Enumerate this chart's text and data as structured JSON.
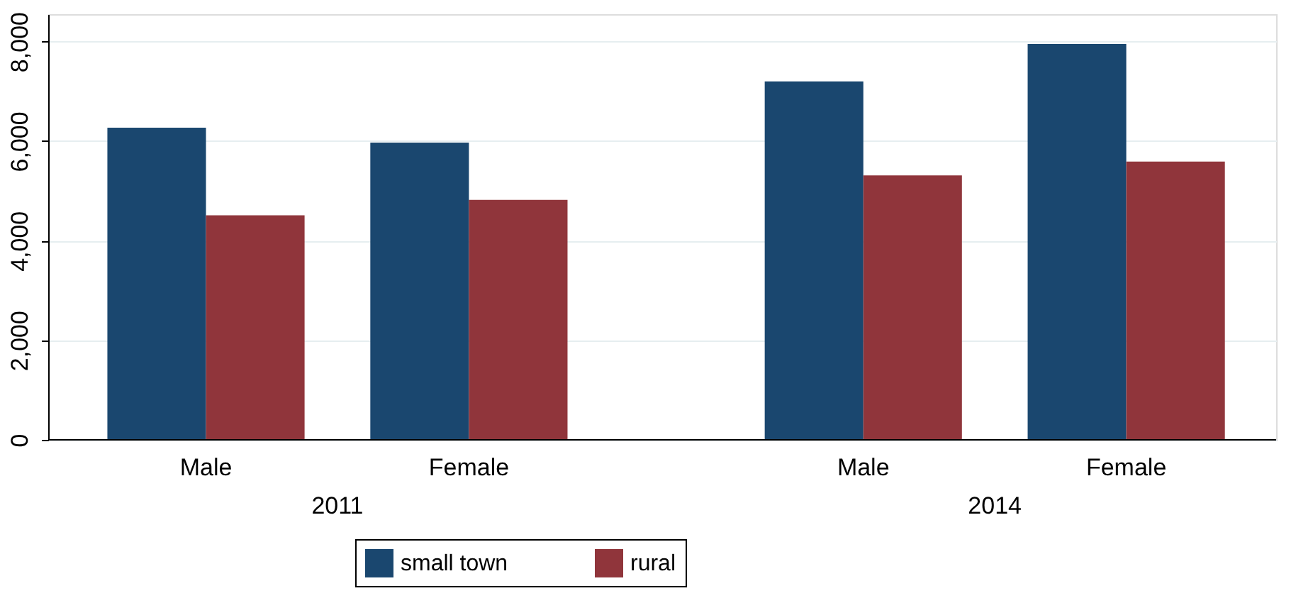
{
  "chart_data": {
    "type": "bar",
    "categories": [
      "Male",
      "Female",
      "Male",
      "Female"
    ],
    "series": [
      {
        "name": "small town",
        "color": "#1a476f",
        "values": [
          6270,
          5970,
          7200,
          7950
        ]
      },
      {
        "name": "rural",
        "color": "#90353b",
        "values": [
          4510,
          4820,
          5310,
          5590
        ]
      }
    ],
    "ylim": [
      0,
      8550
    ],
    "yticks": [
      {
        "value": 0,
        "label": "0"
      },
      {
        "value": 2000,
        "label": "2,000"
      },
      {
        "value": 4000,
        "label": "4,000"
      },
      {
        "value": 6000,
        "label": "6,000"
      },
      {
        "value": 8000,
        "label": "8,000"
      }
    ],
    "grid": "y",
    "legend": "bottom",
    "annotations": [
      "2011",
      "2014"
    ]
  }
}
